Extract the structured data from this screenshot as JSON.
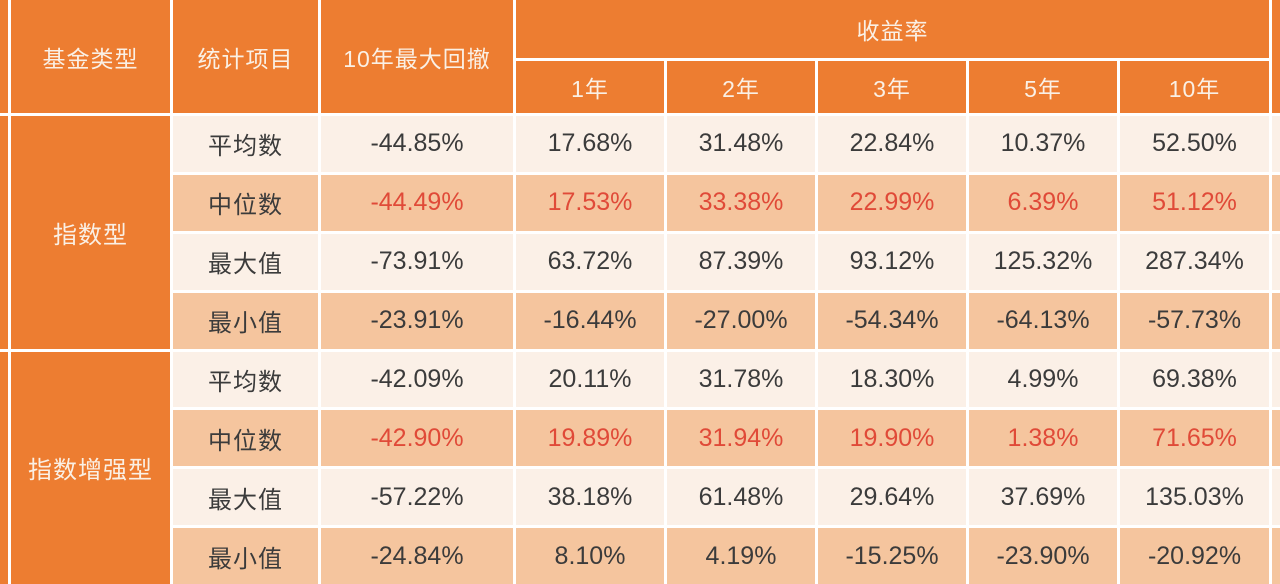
{
  "colors": {
    "header_orange": "#ED7D31",
    "row_light": "#FBF0E7",
    "row_peach": "#F5C59E",
    "highlight_red": "#E04A38",
    "text_dark": "#3B3B3B",
    "header_text": "#FAF0E5",
    "gridline": "#FFFFFF"
  },
  "header": {
    "fund_type": "基金类型",
    "stat_item": "统计项目",
    "drawdown_10y": "10年最大回撤",
    "return_rate": "收益率",
    "periods": [
      "1年",
      "2年",
      "3年",
      "5年",
      "10年"
    ]
  },
  "chart_data": {
    "type": "table",
    "columns": [
      "基金类型",
      "统计项目",
      "10年最大回撤",
      "收益率 1年",
      "收益率 2年",
      "收益率 3年",
      "收益率 5年",
      "收益率 10年"
    ],
    "groups": [
      {
        "name": "指数型",
        "rows": [
          {
            "stat": "平均数",
            "drawdown": "-44.85%",
            "returns": [
              "17.68%",
              "31.48%",
              "22.84%",
              "10.37%",
              "52.50%"
            ],
            "highlight": false
          },
          {
            "stat": "中位数",
            "drawdown": "-44.49%",
            "returns": [
              "17.53%",
              "33.38%",
              "22.99%",
              "6.39%",
              "51.12%"
            ],
            "highlight": true
          },
          {
            "stat": "最大值",
            "drawdown": "-73.91%",
            "returns": [
              "63.72%",
              "87.39%",
              "93.12%",
              "125.32%",
              "287.34%"
            ],
            "highlight": false
          },
          {
            "stat": "最小值",
            "drawdown": "-23.91%",
            "returns": [
              "-16.44%",
              "-27.00%",
              "-54.34%",
              "-64.13%",
              "-57.73%"
            ],
            "highlight": false
          }
        ]
      },
      {
        "name": "指数增强型",
        "rows": [
          {
            "stat": "平均数",
            "drawdown": "-42.09%",
            "returns": [
              "20.11%",
              "31.78%",
              "18.30%",
              "4.99%",
              "69.38%"
            ],
            "highlight": false
          },
          {
            "stat": "中位数",
            "drawdown": "-42.90%",
            "returns": [
              "19.89%",
              "31.94%",
              "19.90%",
              "1.38%",
              "71.65%"
            ],
            "highlight": true
          },
          {
            "stat": "最大值",
            "drawdown": "-57.22%",
            "returns": [
              "38.18%",
              "61.48%",
              "29.64%",
              "37.69%",
              "135.03%"
            ],
            "highlight": false
          },
          {
            "stat": "最小值",
            "drawdown": "-24.84%",
            "returns": [
              "8.10%",
              "4.19%",
              "-15.25%",
              "-23.90%",
              "-20.92%"
            ],
            "highlight": false
          }
        ]
      }
    ]
  }
}
